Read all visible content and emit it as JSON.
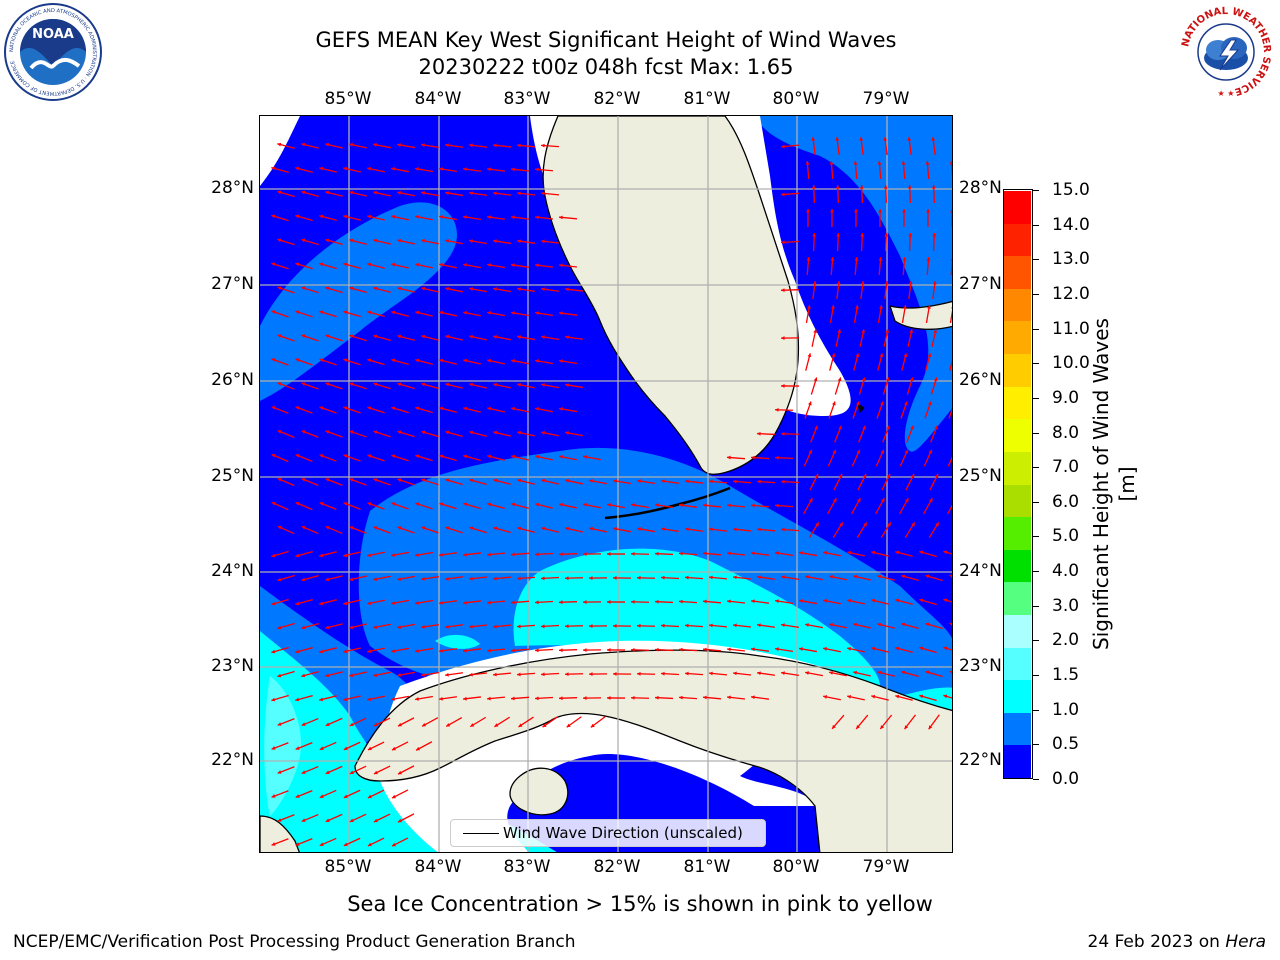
{
  "title": {
    "line1": "GEFS MEAN Key West Significant Height of Wind Waves",
    "line2": "20230222 t00z 048h fcst   Max: 1.65"
  },
  "map": {
    "lon_labels": [
      "85°W",
      "84°W",
      "83°W",
      "82°W",
      "81°W",
      "80°W",
      "79°W"
    ],
    "lat_labels": [
      "28°N",
      "27°N",
      "26°N",
      "25°N",
      "24°N",
      "23°N",
      "22°N"
    ],
    "land_color": "#eeeedf",
    "grid_color": "#b0b0b0",
    "arrow_color": "#ff0000",
    "legend_label": "Wind Wave Direction (unscaled)"
  },
  "colorbar": {
    "label": "Significant Height of Wind Waves [m]",
    "ticks": [
      "15.0",
      "14.0",
      "13.0",
      "12.0",
      "11.0",
      "10.0",
      "9.0",
      "8.0",
      "7.0",
      "6.0",
      "5.0",
      "4.0",
      "3.0",
      "2.0",
      "1.5",
      "1.0",
      "0.5",
      "0.0"
    ],
    "colors_bottom_to_top": [
      "#0000ff",
      "#0078ff",
      "#00ffff",
      "#55ffff",
      "#aaffff",
      "#55ff80",
      "#00e000",
      "#55ee00",
      "#aadd00",
      "#ccee00",
      "#eeff00",
      "#ffee00",
      "#ffcc00",
      "#ffaa00",
      "#ff8800",
      "#ff5500",
      "#ff2200",
      "#ff0000"
    ]
  },
  "subtitle": "Sea Ice Concentration > 15% is shown in pink to yellow",
  "footer": {
    "left": "NCEP/EMC/Verification Post Processing Product Generation Branch",
    "right_prefix": "24 Feb 2023 on ",
    "right_machine": "Hera"
  },
  "logos": {
    "noaa_text": "NOAA",
    "noaa_ring": "NATIONAL OCEANIC AND ATMOSPHERIC ADMINISTRATION · U.S. DEPARTMENT OF COMMERCE",
    "nws_ring": "NATIONAL WEATHER SERVICE"
  }
}
